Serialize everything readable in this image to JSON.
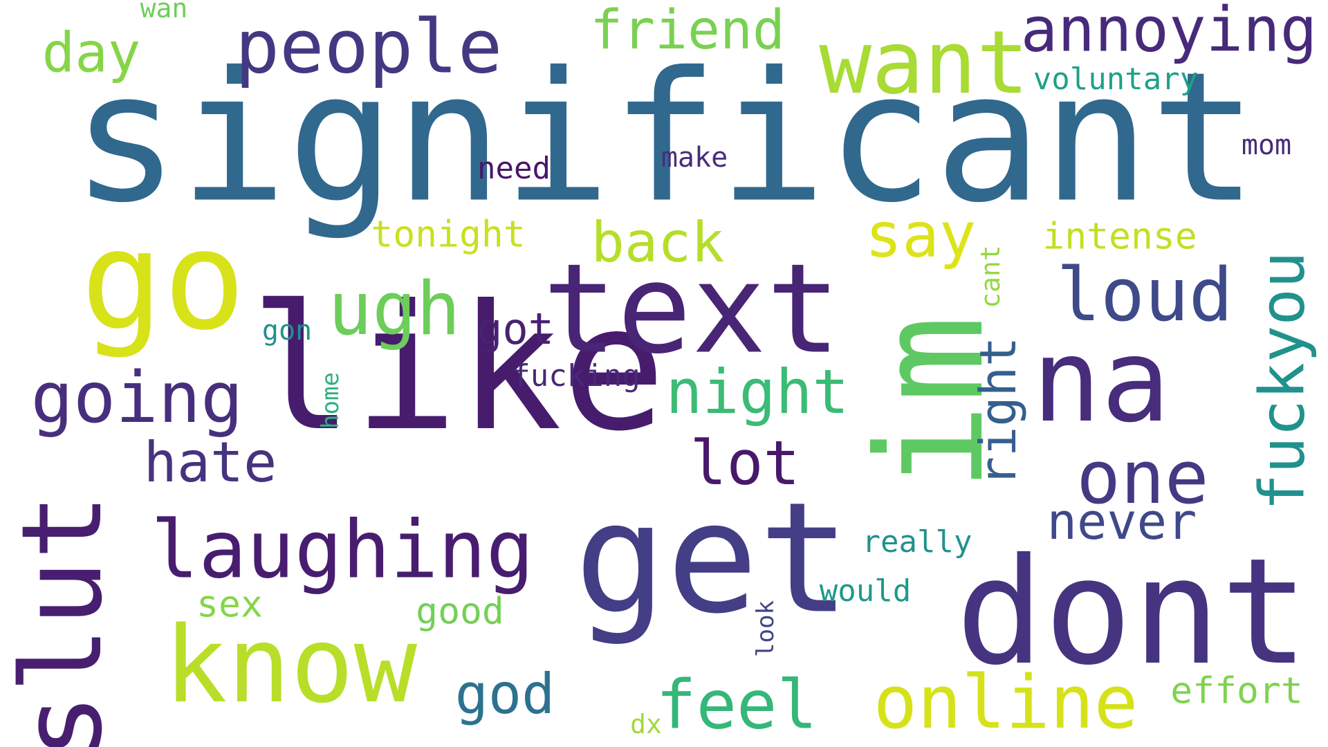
{
  "words": [
    {
      "text": "significant",
      "color": "#31688e",
      "rotated": false
    },
    {
      "text": "like",
      "color": "#471c6d",
      "rotated": false
    },
    {
      "text": "dont",
      "color": "#463480",
      "rotated": false
    },
    {
      "text": "get",
      "color": "#433e85",
      "rotated": false
    },
    {
      "text": "im",
      "color": "#5ec962",
      "rotated": true
    },
    {
      "text": "text",
      "color": "#482575",
      "rotated": false
    },
    {
      "text": "go",
      "color": "#d8e219",
      "rotated": false
    },
    {
      "text": "slut",
      "color": "#481f70",
      "rotated": true
    },
    {
      "text": "know",
      "color": "#b8de29",
      "rotated": false
    },
    {
      "text": "people",
      "color": "#453882",
      "rotated": false
    },
    {
      "text": "want",
      "color": "#a8db34",
      "rotated": false
    },
    {
      "text": "na",
      "color": "#472d7b",
      "rotated": false
    },
    {
      "text": "laughing",
      "color": "#481d6f",
      "rotated": false
    },
    {
      "text": "online",
      "color": "#d5e21a",
      "rotated": false
    },
    {
      "text": "annoying",
      "color": "#472a7a",
      "rotated": false
    },
    {
      "text": "going",
      "color": "#472f7d",
      "rotated": false
    },
    {
      "text": "one",
      "color": "#443983",
      "rotated": false
    },
    {
      "text": "fuckyou",
      "color": "#21918c",
      "rotated": true
    },
    {
      "text": "ugh",
      "color": "#6ccd5a",
      "rotated": false
    },
    {
      "text": "loud",
      "color": "#3e4a89",
      "rotated": false
    },
    {
      "text": "night",
      "color": "#3bbb75",
      "rotated": false
    },
    {
      "text": "feel",
      "color": "#35b779",
      "rotated": false
    },
    {
      "text": "friend",
      "color": "#7ad151",
      "rotated": false
    },
    {
      "text": "say",
      "color": "#dde318",
      "rotated": false
    },
    {
      "text": "back",
      "color": "#b5de2b",
      "rotated": false
    },
    {
      "text": "day",
      "color": "#86d549",
      "rotated": false
    },
    {
      "text": "hate",
      "color": "#46337f",
      "rotated": false
    },
    {
      "text": "lot",
      "color": "#48186a",
      "rotated": false
    },
    {
      "text": "right",
      "color": "#355f8d",
      "rotated": true
    },
    {
      "text": "never",
      "color": "#3f4889",
      "rotated": false
    },
    {
      "text": "god",
      "color": "#2c728e",
      "rotated": false
    },
    {
      "text": "tonight",
      "color": "#c8e020",
      "rotated": false
    },
    {
      "text": "intense",
      "color": "#c2df23",
      "rotated": false
    },
    {
      "text": "got",
      "color": "#482173",
      "rotated": false
    },
    {
      "text": "effort",
      "color": "#7fd34e",
      "rotated": false
    },
    {
      "text": "good",
      "color": "#73d056",
      "rotated": false
    },
    {
      "text": "sex",
      "color": "#86d549",
      "rotated": false
    },
    {
      "text": "would",
      "color": "#1f9a8a",
      "rotated": false
    },
    {
      "text": "really",
      "color": "#20928c",
      "rotated": false
    },
    {
      "text": "fucking",
      "color": "#482878",
      "rotated": false
    },
    {
      "text": "voluntary",
      "color": "#1fa188",
      "rotated": false
    },
    {
      "text": "need",
      "color": "#481668",
      "rotated": false
    },
    {
      "text": "make",
      "color": "#472d7b",
      "rotated": false
    },
    {
      "text": "mom",
      "color": "#472c7a",
      "rotated": false
    },
    {
      "text": "cant",
      "color": "#95d840",
      "rotated": true
    },
    {
      "text": "gon",
      "color": "#21918c",
      "rotated": false
    },
    {
      "text": "home",
      "color": "#2db27d",
      "rotated": true
    },
    {
      "text": "look",
      "color": "#414487",
      "rotated": true
    },
    {
      "text": "wan",
      "color": "#6ece58",
      "rotated": false
    },
    {
      "text": "dx",
      "color": "#a0da39",
      "rotated": false
    }
  ]
}
